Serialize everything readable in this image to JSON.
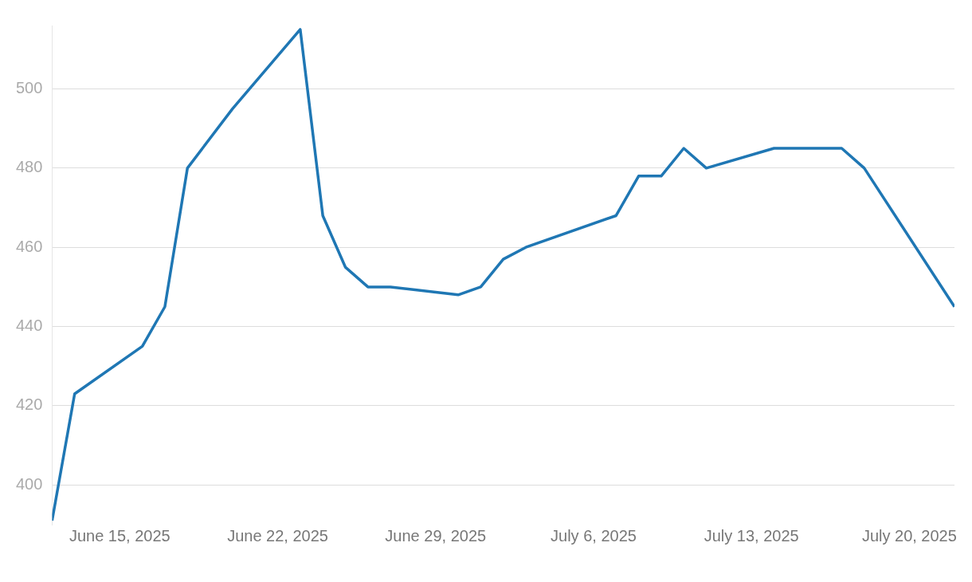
{
  "chart_data": {
    "type": "line",
    "x": [
      "2025-06-12",
      "2025-06-13",
      "2025-06-16",
      "2025-06-17",
      "2025-06-18",
      "2025-06-20",
      "2025-06-23",
      "2025-06-24",
      "2025-06-25",
      "2025-06-26",
      "2025-06-27",
      "2025-06-30",
      "2025-07-01",
      "2025-07-02",
      "2025-07-03",
      "2025-07-07",
      "2025-07-08",
      "2025-07-09",
      "2025-07-10",
      "2025-07-11",
      "2025-07-14",
      "2025-07-17",
      "2025-07-18",
      "2025-07-22"
    ],
    "series": [
      {
        "color": "#1f77b4",
        "values": [
          391,
          423,
          435,
          445,
          480,
          495,
          515,
          468,
          455,
          450,
          450,
          448,
          450,
          457,
          460,
          468,
          478,
          478,
          485,
          480,
          485,
          485,
          480,
          445
        ]
      }
    ],
    "xlim": [
      "2025-06-12",
      "2025-07-22"
    ],
    "xticks": [
      {
        "value": "2025-06-15",
        "label": "June 15, 2025"
      },
      {
        "value": "2025-06-22",
        "label": "June 22, 2025"
      },
      {
        "value": "2025-06-29",
        "label": "June 29, 2025"
      },
      {
        "value": "2025-07-06",
        "label": "July 6, 2025"
      },
      {
        "value": "2025-07-13",
        "label": "July 13, 2025"
      },
      {
        "value": "2025-07-20",
        "label": "July 20, 2025"
      }
    ],
    "ylim": [
      390,
      516
    ],
    "yticks": [
      400,
      420,
      440,
      460,
      480,
      500
    ],
    "grid": "y",
    "legend": false,
    "marker": "none",
    "line_style": "solid"
  }
}
